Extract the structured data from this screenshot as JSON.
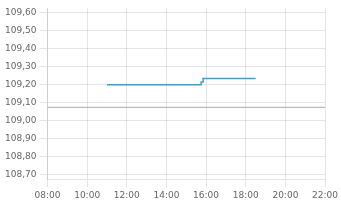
{
  "chart_data": {
    "type": "line",
    "x": [
      11.0,
      15.75,
      15.75,
      15.85,
      15.85,
      18.5
    ],
    "values": [
      109.2,
      109.2,
      109.215,
      109.215,
      109.235,
      109.235
    ],
    "color": "#3a9fd1",
    "xlim": [
      8.0,
      22.0
    ],
    "xticks": [
      {
        "value": 8,
        "label": "08:00"
      },
      {
        "value": 10,
        "label": "10:00"
      },
      {
        "value": 12,
        "label": "12:00"
      },
      {
        "value": 14,
        "label": "14:00"
      },
      {
        "value": 16,
        "label": "16:00"
      },
      {
        "value": 18,
        "label": "18:00"
      },
      {
        "value": 20,
        "label": "20:00"
      },
      {
        "value": 22,
        "label": "22:00"
      }
    ],
    "ylim": [
      108.675,
      109.625
    ],
    "yticks": [
      {
        "value": 108.7,
        "label": "108,70"
      },
      {
        "value": 108.8,
        "label": "108,80"
      },
      {
        "value": 108.9,
        "label": "108,90"
      },
      {
        "value": 109.0,
        "label": "109,00"
      },
      {
        "value": 109.1,
        "label": "109,10"
      },
      {
        "value": 109.2,
        "label": "109,20"
      },
      {
        "value": 109.3,
        "label": "109,30"
      },
      {
        "value": 109.4,
        "label": "109,40"
      },
      {
        "value": 109.5,
        "label": "109,50"
      },
      {
        "value": 109.6,
        "label": "109,60"
      }
    ],
    "hline_y": 109.075,
    "grid": true
  }
}
